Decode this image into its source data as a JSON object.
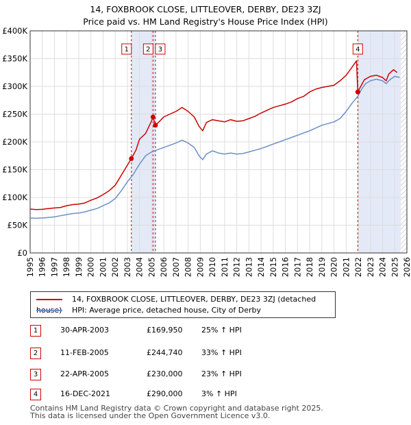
{
  "title_line1": "14, FOXBROOK CLOSE, LITTLEOVER, DERBY, DE23 3ZJ",
  "title_line2": "Price paid vs. HM Land Registry's House Price Index (HPI)",
  "colors": {
    "property": "#cc0000",
    "hpi": "#6a8fc8",
    "shade": "#dde4f5",
    "hatch": "#aaaaaa",
    "grid": "#dddddd"
  },
  "legend": {
    "property_label": "14, FOXBROOK CLOSE, LITTLEOVER, DERBY, DE23 3ZJ (detached house)",
    "hpi_label": "HPI: Average price, detached house, City of Derby"
  },
  "transactions": [
    {
      "num": "1",
      "date": "30-APR-2003",
      "price": "£169,950",
      "hpi": "25% ↑ HPI"
    },
    {
      "num": "2",
      "date": "11-FEB-2005",
      "price": "£244,740",
      "hpi": "33% ↑ HPI"
    },
    {
      "num": "3",
      "date": "22-APR-2005",
      "price": "£230,000",
      "hpi": "23% ↑ HPI"
    },
    {
      "num": "4",
      "date": "16-DEC-2021",
      "price": "£290,000",
      "hpi": "3% ↑ HPI"
    }
  ],
  "footer_line1": "Contains HM Land Registry data © Crown copyright and database right 2025.",
  "footer_line2": "This data is licensed under the Open Government Licence v3.0.",
  "chart_data": {
    "type": "line",
    "title": "14, FOXBROOK CLOSE, LITTLEOVER, DERBY, DE23 3ZJ",
    "subtitle": "Price paid vs. HM Land Registry's House Price Index (HPI)",
    "xlabel": "",
    "ylabel": "",
    "xlim": [
      1995,
      2026
    ],
    "ylim": [
      0,
      400000
    ],
    "x_ticks": [
      1995,
      1996,
      1997,
      1998,
      1999,
      2000,
      2001,
      2002,
      2003,
      2004,
      2005,
      2006,
      2007,
      2008,
      2009,
      2010,
      2011,
      2012,
      2013,
      2014,
      2015,
      2016,
      2017,
      2018,
      2019,
      2020,
      2021,
      2022,
      2023,
      2024,
      2025,
      2026
    ],
    "y_ticks": [
      0,
      50000,
      100000,
      150000,
      200000,
      250000,
      300000,
      350000,
      400000
    ],
    "y_tick_labels": [
      "£0",
      "£50K",
      "£100K",
      "£150K",
      "£200K",
      "£250K",
      "£300K",
      "£350K",
      "£400K"
    ],
    "grid": true,
    "legend_position": "below",
    "shaded_ranges": [
      [
        2003.33,
        2005.31
      ],
      [
        2021.96,
        2025.5
      ]
    ],
    "hatched_range": [
      2025.5,
      2026
    ],
    "series": [
      {
        "name": "14, FOXBROOK CLOSE, LITTLEOVER, DERBY, DE23 3ZJ (detached house)",
        "x": [
          1995.0,
          1995.5,
          1996.0,
          1996.5,
          1997.0,
          1997.5,
          1998.0,
          1998.5,
          1999.0,
          1999.5,
          2000.0,
          2000.5,
          2001.0,
          2001.5,
          2002.0,
          2002.5,
          2003.0,
          2003.33,
          2003.7,
          2004.0,
          2004.5,
          2005.0,
          2005.11,
          2005.31,
          2005.6,
          2006.0,
          2006.5,
          2007.0,
          2007.5,
          2008.0,
          2008.5,
          2008.9,
          2009.2,
          2009.5,
          2010.0,
          2010.5,
          2011.0,
          2011.5,
          2012.0,
          2012.5,
          2013.0,
          2013.5,
          2014.0,
          2014.5,
          2015.0,
          2015.5,
          2016.0,
          2016.5,
          2017.0,
          2017.5,
          2018.0,
          2018.5,
          2019.0,
          2019.5,
          2020.0,
          2020.5,
          2021.0,
          2021.5,
          2021.85,
          2021.96,
          2022.2,
          2022.5,
          2023.0,
          2023.5,
          2024.0,
          2024.3,
          2024.5,
          2024.9,
          2025.2
        ],
        "y": [
          79000,
          78000,
          78500,
          80000,
          81000,
          82000,
          85000,
          87000,
          88000,
          90000,
          95000,
          99000,
          105000,
          112000,
          122000,
          140000,
          158000,
          169950,
          185000,
          205000,
          215000,
          238000,
          244740,
          230000,
          236000,
          245000,
          250000,
          255000,
          262000,
          255000,
          245000,
          228000,
          220000,
          235000,
          240000,
          238000,
          236000,
          240000,
          237000,
          238000,
          242000,
          246000,
          252000,
          257000,
          262000,
          265000,
          268000,
          272000,
          278000,
          282000,
          290000,
          295000,
          298000,
          300000,
          302000,
          310000,
          320000,
          335000,
          346000,
          290000,
          300000,
          312000,
          318000,
          320000,
          316000,
          310000,
          322000,
          330000,
          325000
        ]
      },
      {
        "name": "HPI: Average price, detached house, City of Derby",
        "x": [
          1995.0,
          1995.5,
          1996.0,
          1996.5,
          1997.0,
          1997.5,
          1998.0,
          1998.5,
          1999.0,
          1999.5,
          2000.0,
          2000.5,
          2001.0,
          2001.5,
          2002.0,
          2002.5,
          2003.0,
          2003.5,
          2004.0,
          2004.5,
          2005.0,
          2005.5,
          2006.0,
          2006.5,
          2007.0,
          2007.5,
          2008.0,
          2008.5,
          2008.9,
          2009.2,
          2009.5,
          2010.0,
          2010.5,
          2011.0,
          2011.5,
          2012.0,
          2012.5,
          2013.0,
          2013.5,
          2014.0,
          2014.5,
          2015.0,
          2015.5,
          2016.0,
          2016.5,
          2017.0,
          2017.5,
          2018.0,
          2018.5,
          2019.0,
          2019.5,
          2020.0,
          2020.5,
          2021.0,
          2021.5,
          2021.96,
          2022.3,
          2022.6,
          2023.0,
          2023.5,
          2024.0,
          2024.3,
          2024.6,
          2025.0,
          2025.4
        ],
        "y": [
          63000,
          62500,
          63000,
          64000,
          65000,
          67000,
          69000,
          71000,
          72000,
          74000,
          77000,
          80000,
          85000,
          90000,
          98000,
          112000,
          128000,
          142000,
          160000,
          175000,
          182000,
          186000,
          190000,
          194000,
          198000,
          203000,
          198000,
          190000,
          175000,
          168000,
          178000,
          184000,
          180000,
          178000,
          180000,
          178000,
          179000,
          182000,
          185000,
          188000,
          192000,
          196000,
          200000,
          204000,
          208000,
          212000,
          216000,
          220000,
          225000,
          230000,
          233000,
          236000,
          242000,
          255000,
          270000,
          282000,
          296000,
          305000,
          310000,
          313000,
          310000,
          305000,
          312000,
          318000,
          316000
        ]
      }
    ],
    "markers": [
      {
        "label": "1",
        "x": 2003.33,
        "y": 169950
      },
      {
        "label": "2",
        "x": 2005.11,
        "y": 244740
      },
      {
        "label": "3",
        "x": 2005.31,
        "y": 230000
      },
      {
        "label": "4",
        "x": 2021.96,
        "y": 290000
      }
    ]
  }
}
